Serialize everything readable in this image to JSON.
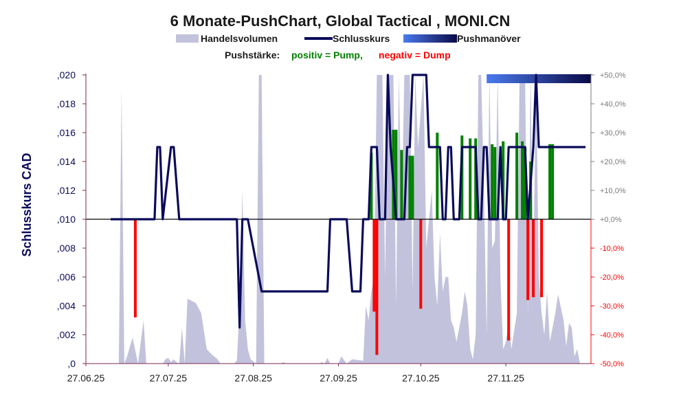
{
  "chart_data": {
    "type": "line",
    "title": "6 Monate-PushChart, Global Tactical , MONI.CN",
    "legend": {
      "placement": "top",
      "items": [
        {
          "label": "Handelsvolumen",
          "kind": "area"
        },
        {
          "label": "Schlusskurs",
          "kind": "line"
        },
        {
          "label": "Pushmanöver",
          "kind": "gradient"
        }
      ]
    },
    "push_legend": {
      "prefix": "Pushstärke:",
      "positive": "positiv = Pump,",
      "negative": "negativ = Dump"
    },
    "ylabel": "Schlusskurs CAD",
    "xlabel": "",
    "y_left": {
      "range": [
        0,
        0.02
      ],
      "ticks": [
        0,
        0.002,
        0.004,
        0.006,
        0.008,
        0.01,
        0.012,
        0.014,
        0.016,
        0.018,
        0.02
      ],
      "tick_labels": [
        ",0",
        ",002",
        ",004",
        ",006",
        ",008",
        ",010",
        ",012",
        ",014",
        ",016",
        ",018",
        ",020"
      ]
    },
    "y_right": {
      "range": [
        -50,
        50
      ],
      "ticks": [
        -50,
        -40,
        -30,
        -20,
        -10,
        0,
        10,
        20,
        30,
        40,
        50
      ],
      "tick_labels": [
        "-50,0%",
        "-40,0%",
        "-30,0%",
        "-20,0%",
        "-10,0%",
        "+0,0%",
        "+10,0%",
        "+20,0%",
        "+30,0%",
        "+40,0%",
        "+50,0%"
      ]
    },
    "x_axis": {
      "range": [
        "2025-06-27",
        "2025-12-28"
      ],
      "ticks": [
        "2025-06-27",
        "2025-07-27",
        "2025-08-27",
        "2025-09-27",
        "2025-10-27",
        "2025-11-27"
      ],
      "tick_labels": [
        "27.06.25",
        "27.07.25",
        "27.08.25",
        "27.09.25",
        "27.10.25",
        "27.11.25"
      ]
    },
    "baseline": 0.01,
    "grid": false,
    "colors": {
      "volume": "#c2c2dc",
      "close": "#0a0a5a",
      "pump": "#008000",
      "dump": "#ff0000",
      "push_start": "#4a7aee",
      "push_end": "#0a0a46",
      "left_axis": "#7a2a50",
      "right_axis_pos": "#7a7a7a",
      "right_axis_neg": "#ff0000",
      "title": "#1a1a1a",
      "ylabel": "#0a0a5a"
    },
    "push_maneuver": {
      "start": "2025-11-20",
      "end": "2025-12-28",
      "level": 50
    },
    "series": [
      {
        "name": "Handelsvolumen",
        "type": "area",
        "axis": "left",
        "points": [
          [
            "2025-06-27",
            0
          ],
          [
            "2025-07-09",
            0
          ],
          [
            "2025-07-10",
            0.019
          ],
          [
            "2025-07-11",
            0
          ],
          [
            "2025-07-12",
            0.0005
          ],
          [
            "2025-07-14",
            0.0018
          ],
          [
            "2025-07-16",
            0
          ],
          [
            "2025-07-18",
            0.003
          ],
          [
            "2025-07-19",
            0
          ],
          [
            "2025-07-25",
            0
          ],
          [
            "2025-07-26",
            0.0003
          ],
          [
            "2025-07-27",
            0.0004
          ],
          [
            "2025-07-28",
            0.0001
          ],
          [
            "2025-07-29",
            0.0003
          ],
          [
            "2025-07-30",
            0.0001
          ],
          [
            "2025-07-31",
            0
          ],
          [
            "2025-08-01",
            0.0025
          ],
          [
            "2025-08-02",
            0
          ],
          [
            "2025-08-03",
            0.0045
          ],
          [
            "2025-08-06",
            0.0042
          ],
          [
            "2025-08-08",
            0.0035
          ],
          [
            "2025-08-10",
            0.001
          ],
          [
            "2025-08-12",
            0.0006
          ],
          [
            "2025-08-14",
            0.0003
          ],
          [
            "2025-08-15",
            0
          ],
          [
            "2025-08-20",
            0
          ],
          [
            "2025-08-21",
            0.0002
          ],
          [
            "2025-08-22",
            0.004
          ],
          [
            "2025-08-23",
            0.012
          ],
          [
            "2025-08-24",
            0.003
          ],
          [
            "2025-08-25",
            0.001
          ],
          [
            "2025-08-26",
            0.0003
          ],
          [
            "2025-08-28",
            0
          ],
          [
            "2025-08-29",
            0.02
          ],
          [
            "2025-08-30",
            0.02
          ],
          [
            "2025-08-31",
            0
          ],
          [
            "2025-09-06",
            0
          ],
          [
            "2025-09-07",
            0.0001
          ],
          [
            "2025-09-08",
            0
          ],
          [
            "2025-09-20",
            0
          ],
          [
            "2025-09-21",
            0.0001
          ],
          [
            "2025-09-22",
            0
          ],
          [
            "2025-09-23",
            0.0004
          ],
          [
            "2025-09-24",
            0
          ],
          [
            "2025-09-27",
            0
          ],
          [
            "2025-09-28",
            0.0005
          ],
          [
            "2025-09-30",
            0
          ],
          [
            "2025-10-02",
            0.0003
          ],
          [
            "2025-10-06",
            0.0002
          ],
          [
            "2025-10-07",
            0.004
          ],
          [
            "2025-10-08",
            0.003
          ],
          [
            "2025-10-09",
            0.005
          ],
          [
            "2025-10-10",
            0.006
          ],
          [
            "2025-10-11",
            0.02
          ],
          [
            "2025-10-13",
            0.02
          ],
          [
            "2025-10-14",
            0.006
          ],
          [
            "2025-10-15",
            0.02
          ],
          [
            "2025-10-17",
            0.02
          ],
          [
            "2025-10-18",
            0.004
          ],
          [
            "2025-10-19",
            0.02
          ],
          [
            "2025-10-20",
            0.01
          ],
          [
            "2025-10-21",
            0.02
          ],
          [
            "2025-10-23",
            0.02
          ],
          [
            "2025-10-24",
            0.005
          ],
          [
            "2025-10-25",
            0.02
          ],
          [
            "2025-10-26",
            0.015
          ],
          [
            "2025-10-28",
            0.02
          ],
          [
            "2025-10-29",
            0.008
          ],
          [
            "2025-10-31",
            0.012
          ],
          [
            "2025-11-01",
            0.006
          ],
          [
            "2025-11-02",
            0.004
          ],
          [
            "2025-11-03",
            0.009
          ],
          [
            "2025-11-04",
            0.005
          ],
          [
            "2025-11-05",
            0.006
          ],
          [
            "2025-11-06",
            0.006
          ],
          [
            "2025-11-07",
            0.003
          ],
          [
            "2025-11-08",
            0.0025
          ],
          [
            "2025-11-09",
            0.0015
          ],
          [
            "2025-11-10",
            0.0025
          ],
          [
            "2025-11-11",
            0.0035
          ],
          [
            "2025-11-12",
            0.005
          ],
          [
            "2025-11-13",
            0.004
          ],
          [
            "2025-11-14",
            0.001
          ],
          [
            "2025-11-15",
            0.0003
          ],
          [
            "2025-11-16",
            0.002
          ],
          [
            "2025-11-17",
            0.02
          ],
          [
            "2025-11-18",
            0.02
          ],
          [
            "2025-11-19",
            0.012
          ],
          [
            "2025-11-20",
            0.002
          ],
          [
            "2025-11-21",
            0.02
          ],
          [
            "2025-11-22",
            0.008
          ],
          [
            "2025-11-23",
            0.0085
          ],
          [
            "2025-11-24",
            0.02
          ],
          [
            "2025-11-25",
            0.006
          ],
          [
            "2025-11-26",
            0.001
          ],
          [
            "2025-11-27",
            0.0015
          ],
          [
            "2025-11-28",
            0.003
          ],
          [
            "2025-11-29",
            0.001
          ],
          [
            "2025-12-01",
            0.0035
          ],
          [
            "2025-12-02",
            0.02
          ],
          [
            "2025-12-04",
            0.02
          ],
          [
            "2025-12-05",
            0.0035
          ],
          [
            "2025-12-06",
            0.02
          ],
          [
            "2025-12-07",
            0.0065
          ],
          [
            "2025-12-08",
            0.02
          ],
          [
            "2025-12-09",
            0.006
          ],
          [
            "2025-12-10",
            0.0035
          ],
          [
            "2025-12-11",
            0.002
          ],
          [
            "2025-12-12",
            0.005
          ],
          [
            "2025-12-13",
            0.0015
          ],
          [
            "2025-12-15",
            0.0035
          ],
          [
            "2025-12-16",
            0.0048
          ],
          [
            "2025-12-18",
            0.003
          ],
          [
            "2025-12-19",
            0.0012
          ],
          [
            "2025-12-20",
            0.0028
          ],
          [
            "2025-12-21",
            0.0025
          ],
          [
            "2025-12-22",
            0.0005
          ],
          [
            "2025-12-23",
            0.001
          ],
          [
            "2025-12-24",
            0
          ],
          [
            "2025-12-28",
            0
          ]
        ]
      },
      {
        "name": "Schlusskurs",
        "type": "line",
        "axis": "left",
        "points": [
          [
            "2025-07-06",
            0.01
          ],
          [
            "2025-07-22",
            0.01
          ],
          [
            "2025-07-23",
            0.015
          ],
          [
            "2025-07-24",
            0.015
          ],
          [
            "2025-07-25",
            0.01
          ],
          [
            "2025-07-28",
            0.015
          ],
          [
            "2025-07-29",
            0.015
          ],
          [
            "2025-07-31",
            0.01
          ],
          [
            "2025-08-21",
            0.01
          ],
          [
            "2025-08-22",
            0.0025
          ],
          [
            "2025-08-23",
            0.01
          ],
          [
            "2025-08-25",
            0.01
          ],
          [
            "2025-08-30",
            0.005
          ],
          [
            "2025-09-23",
            0.005
          ],
          [
            "2025-09-24",
            0.01
          ],
          [
            "2025-09-30",
            0.01
          ],
          [
            "2025-10-02",
            0.005
          ],
          [
            "2025-10-05",
            0.005
          ],
          [
            "2025-10-06",
            0.01
          ],
          [
            "2025-10-08",
            0.01
          ],
          [
            "2025-10-09",
            0.015
          ],
          [
            "2025-10-11",
            0.015
          ],
          [
            "2025-10-12",
            0.01
          ],
          [
            "2025-10-14",
            0.01
          ],
          [
            "2025-10-15",
            0.02
          ],
          [
            "2025-10-16",
            0.015
          ],
          [
            "2025-10-18",
            0.01
          ],
          [
            "2025-10-21",
            0.01
          ],
          [
            "2025-10-22",
            0.015
          ],
          [
            "2025-10-23",
            0.015
          ],
          [
            "2025-10-24",
            0.02
          ],
          [
            "2025-10-29",
            0.02
          ],
          [
            "2025-10-30",
            0.015
          ],
          [
            "2025-11-03",
            0.015
          ],
          [
            "2025-11-04",
            0.01
          ],
          [
            "2025-11-05",
            0.01
          ],
          [
            "2025-11-06",
            0.015
          ],
          [
            "2025-11-07",
            0.015
          ],
          [
            "2025-11-08",
            0.01
          ],
          [
            "2025-11-10",
            0.01
          ],
          [
            "2025-11-11",
            0.015
          ],
          [
            "2025-11-16",
            0.015
          ],
          [
            "2025-11-17",
            0.01
          ],
          [
            "2025-11-18",
            0.01
          ],
          [
            "2025-11-19",
            0.015
          ],
          [
            "2025-11-20",
            0.015
          ],
          [
            "2025-11-21",
            0.01
          ],
          [
            "2025-11-24",
            0.01
          ],
          [
            "2025-11-25",
            0.015
          ],
          [
            "2025-11-26",
            0.01
          ],
          [
            "2025-11-27",
            0.01
          ],
          [
            "2025-11-28",
            0.015
          ],
          [
            "2025-12-04",
            0.015
          ],
          [
            "2025-12-05",
            0.01
          ],
          [
            "2025-12-07",
            0.015
          ],
          [
            "2025-12-08",
            0.02
          ],
          [
            "2025-12-09",
            0.015
          ],
          [
            "2025-12-26",
            0.015
          ]
        ]
      },
      {
        "name": "Pushstärke",
        "type": "bar",
        "axis": "right",
        "points": [
          [
            "2025-07-15",
            -34
          ],
          [
            "2025-10-09",
            23
          ],
          [
            "2025-10-10",
            -32
          ],
          [
            "2025-10-11",
            -47
          ],
          [
            "2025-10-17",
            31
          ],
          [
            "2025-10-18",
            31
          ],
          [
            "2025-10-20",
            24
          ],
          [
            "2025-10-23",
            22
          ],
          [
            "2025-10-24",
            22
          ],
          [
            "2025-10-27",
            -31
          ],
          [
            "2025-11-02",
            30
          ],
          [
            "2025-11-11",
            29
          ],
          [
            "2025-11-14",
            28
          ],
          [
            "2025-11-16",
            28
          ],
          [
            "2025-11-22",
            26
          ],
          [
            "2025-11-23",
            25
          ],
          [
            "2025-11-26",
            27
          ],
          [
            "2025-11-28",
            -42
          ],
          [
            "2025-12-01",
            30
          ],
          [
            "2025-12-03",
            27
          ],
          [
            "2025-12-04",
            25
          ],
          [
            "2025-12-05",
            -28
          ],
          [
            "2025-12-06",
            20
          ],
          [
            "2025-12-07",
            -27
          ],
          [
            "2025-12-10",
            -27
          ],
          [
            "2025-12-13",
            26
          ],
          [
            "2025-12-14",
            26
          ]
        ]
      }
    ]
  }
}
